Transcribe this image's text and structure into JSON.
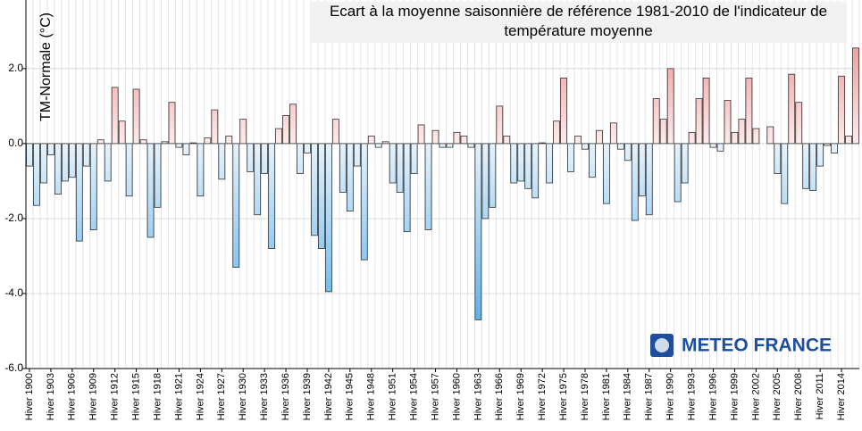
{
  "chart_data": {
    "type": "bar",
    "title": "Ecart à la moyenne saisonnière de référence 1981-2010 de l'indicateur de température moyenne",
    "y_label": "TM-Normale (°C)",
    "logo": "METEO FRANCE",
    "categories": [
      "Hiver 1900",
      null,
      null,
      "Hiver 1903",
      null,
      null,
      "Hiver 1906",
      null,
      null,
      "Hiver 1909",
      null,
      null,
      "Hiver 1912",
      null,
      null,
      "Hiver 1915",
      null,
      null,
      "Hiver 1918",
      null,
      null,
      "Hiver 1921",
      null,
      null,
      "Hiver 1924",
      null,
      null,
      "Hiver 1927",
      null,
      null,
      "Hiver 1930",
      null,
      null,
      "Hiver 1933",
      null,
      null,
      "Hiver 1936",
      null,
      null,
      "Hiver 1939",
      null,
      null,
      "Hiver 1942",
      null,
      null,
      "Hiver 1945",
      null,
      null,
      "Hiver 1948",
      null,
      null,
      "Hiver 1951",
      null,
      null,
      "Hiver 1954",
      null,
      null,
      "Hiver 1957",
      null,
      null,
      "Hiver 1960",
      null,
      null,
      "Hiver 1963",
      null,
      null,
      "Hiver 1966",
      null,
      null,
      "Hiver 1969",
      null,
      null,
      "Hiver 1972",
      null,
      null,
      "Hiver 1975",
      null,
      null,
      "Hiver 1978",
      null,
      null,
      "Hiver 1981",
      null,
      null,
      "Hiver 1984",
      null,
      null,
      "Hiver 1987",
      null,
      null,
      "Hiver 1990",
      null,
      null,
      "Hiver 1993",
      null,
      null,
      "Hiver 1996",
      null,
      null,
      "Hiver 1999",
      null,
      null,
      "Hiver 2002",
      null,
      null,
      "Hiver 2005",
      null,
      null,
      "Hiver 2008",
      null,
      null,
      "Hiver 2011",
      null,
      null,
      "Hiver 2014",
      null,
      null
    ],
    "values": [
      -0.6,
      -1.65,
      -1.05,
      -0.3,
      -1.35,
      -1.0,
      -0.9,
      -2.6,
      -0.6,
      -2.3,
      0.1,
      -1.0,
      1.5,
      0.6,
      -1.4,
      1.45,
      0.1,
      -2.5,
      -1.7,
      0.05,
      1.1,
      -0.1,
      -0.3,
      0.02,
      -1.4,
      0.15,
      0.9,
      -0.95,
      0.2,
      -3.3,
      0.65,
      -0.75,
      -1.9,
      -0.8,
      -2.8,
      0.4,
      0.75,
      1.05,
      -0.8,
      -0.25,
      -2.45,
      -2.8,
      -3.95,
      0.65,
      -1.3,
      -1.8,
      -0.6,
      -3.1,
      0.2,
      -0.1,
      0.05,
      -1.05,
      -1.3,
      -2.35,
      -0.8,
      0.5,
      -2.3,
      0.35,
      -0.1,
      -0.1,
      0.3,
      0.2,
      -0.1,
      -4.7,
      -2.0,
      -1.7,
      1.0,
      0.2,
      -1.05,
      -1.0,
      -1.2,
      -1.45,
      0.02,
      -1.05,
      0.6,
      1.75,
      -0.75,
      0.2,
      -0.15,
      -0.9,
      0.35,
      -1.6,
      0.55,
      -0.15,
      -0.45,
      -2.05,
      -1.4,
      -1.9,
      1.2,
      0.65,
      2.0,
      -1.55,
      -1.05,
      0.3,
      1.2,
      1.75,
      -0.1,
      -0.2,
      1.15,
      0.3,
      0.65,
      1.75,
      0.4,
      0.0,
      0.45,
      -0.8,
      -1.6,
      1.85,
      1.1,
      -1.2,
      -1.25,
      -0.6,
      -0.05,
      -0.25,
      1.8,
      0.2,
      2.55
    ],
    "positive_color": "#e87a7a",
    "negative_color": "#3aa0e8",
    "ylim": [
      -6,
      3.83
    ],
    "yticks": [
      {
        "value": -6,
        "label": "-6.0"
      },
      {
        "value": -4,
        "label": "-4.0"
      },
      {
        "value": -2,
        "label": "-2.0"
      },
      {
        "value": 0,
        "label": "0.0"
      },
      {
        "value": 2,
        "label": "2.0"
      }
    ],
    "grid": true
  }
}
